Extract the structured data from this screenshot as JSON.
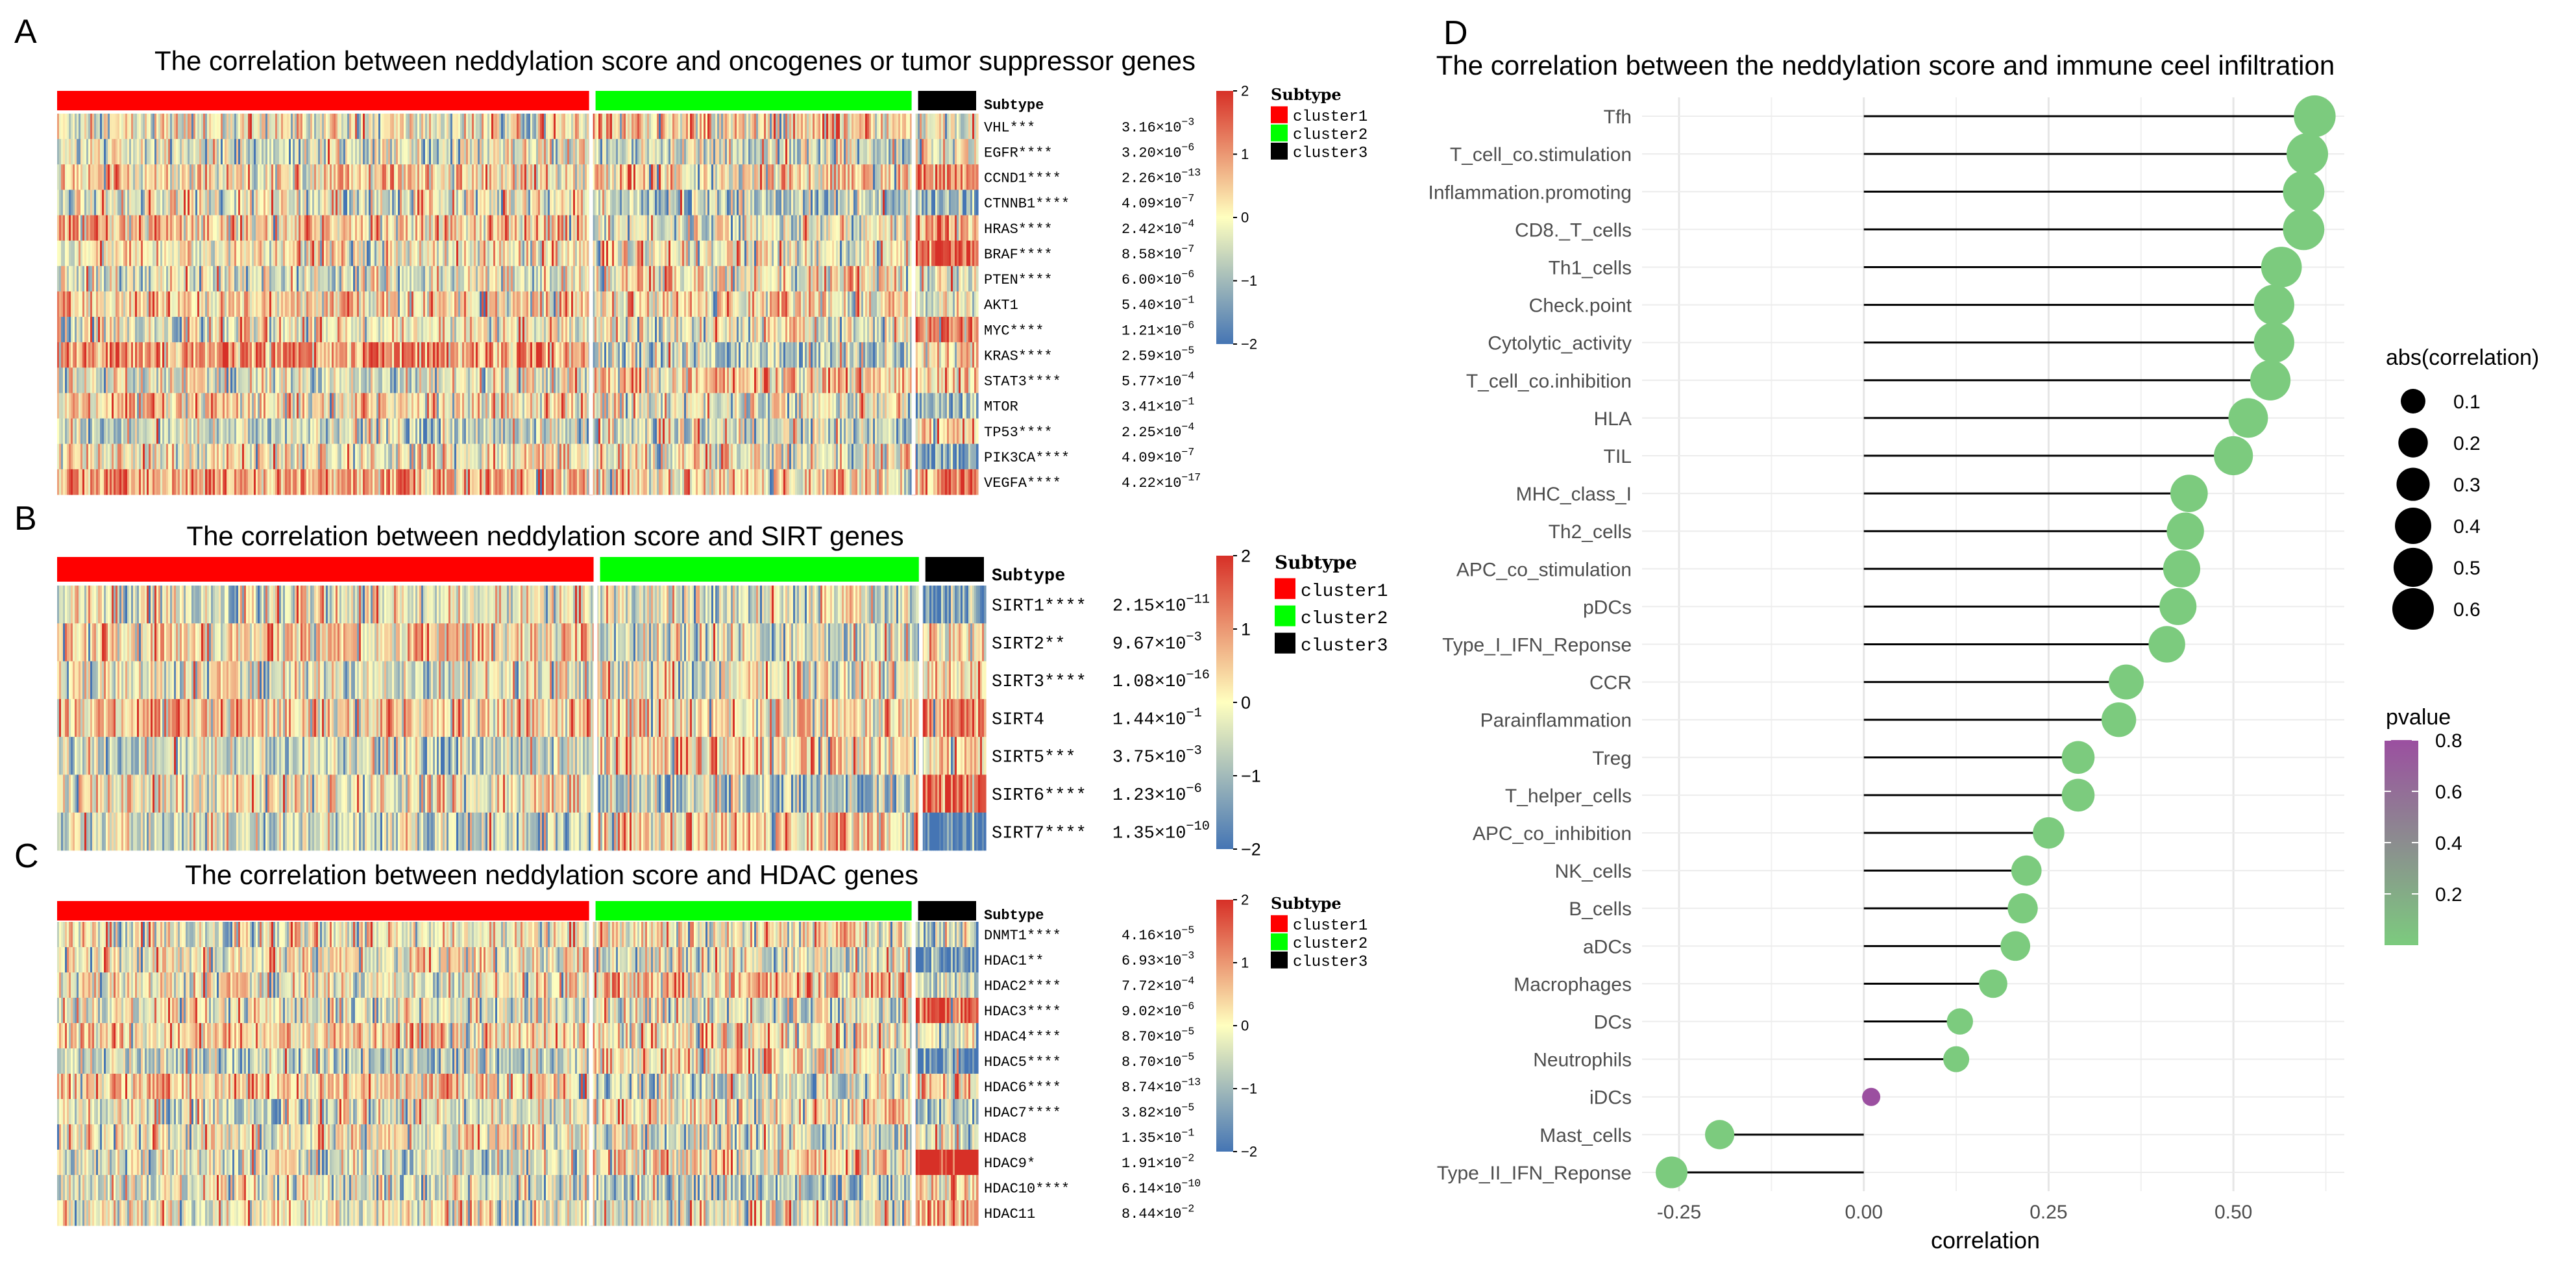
{
  "panels": {
    "A": {
      "letter": "A",
      "title": "The correlation between neddylation score and oncogenes or tumor suppressor genes",
      "annotation_label": "Subtype",
      "legend": {
        "title": "Subtype",
        "entries": [
          {
            "label": "cluster1",
            "color": "#ff0000"
          },
          {
            "label": "cluster2",
            "color": "#00ff00"
          },
          {
            "label": "cluster3",
            "color": "#000000"
          }
        ]
      },
      "colorbar_ticks": [
        "2",
        "1",
        "0",
        "−1",
        "−2"
      ],
      "genes": [
        {
          "label": "VHL***",
          "p_mant": "3.16×10",
          "p_exp": "−3"
        },
        {
          "label": "EGFR****",
          "p_mant": "3.20×10",
          "p_exp": "−6"
        },
        {
          "label": "CCND1****",
          "p_mant": "2.26×10",
          "p_exp": "−13"
        },
        {
          "label": "CTNNB1****",
          "p_mant": "4.09×10",
          "p_exp": "−7"
        },
        {
          "label": "HRAS****",
          "p_mant": "2.42×10",
          "p_exp": "−4"
        },
        {
          "label": "BRAF****",
          "p_mant": "8.58×10",
          "p_exp": "−7"
        },
        {
          "label": "PTEN****",
          "p_mant": "6.00×10",
          "p_exp": "−6"
        },
        {
          "label": "AKT1",
          "p_mant": "5.40×10",
          "p_exp": "−1"
        },
        {
          "label": "MYC****",
          "p_mant": "1.21×10",
          "p_exp": "−6"
        },
        {
          "label": "KRAS****",
          "p_mant": "2.59×10",
          "p_exp": "−5"
        },
        {
          "label": "STAT3****",
          "p_mant": "5.77×10",
          "p_exp": "−4"
        },
        {
          "label": "MTOR",
          "p_mant": "3.41×10",
          "p_exp": "−1"
        },
        {
          "label": "TP53****",
          "p_mant": "2.25×10",
          "p_exp": "−4"
        },
        {
          "label": "PIK3CA****",
          "p_mant": "4.09×10",
          "p_exp": "−7"
        },
        {
          "label": "VEGFA****",
          "p_mant": "4.22×10",
          "p_exp": "−17"
        }
      ]
    },
    "B": {
      "letter": "B",
      "title": "The correlation between neddylation score and SIRT genes",
      "annotation_label": "Subtype",
      "legend": {
        "title": "Subtype",
        "entries": [
          {
            "label": "cluster1",
            "color": "#ff0000"
          },
          {
            "label": "cluster2",
            "color": "#00ff00"
          },
          {
            "label": "cluster3",
            "color": "#000000"
          }
        ]
      },
      "colorbar_ticks": [
        "2",
        "1",
        "0",
        "−1",
        "−2"
      ],
      "genes": [
        {
          "label": "SIRT1****",
          "p_mant": "2.15×10",
          "p_exp": "−11"
        },
        {
          "label": "SIRT2**",
          "p_mant": "9.67×10",
          "p_exp": "−3"
        },
        {
          "label": "SIRT3****",
          "p_mant": "1.08×10",
          "p_exp": "−16"
        },
        {
          "label": "SIRT4",
          "p_mant": "1.44×10",
          "p_exp": "−1"
        },
        {
          "label": "SIRT5***",
          "p_mant": "3.75×10",
          "p_exp": "−3"
        },
        {
          "label": "SIRT6****",
          "p_mant": "1.23×10",
          "p_exp": "−6"
        },
        {
          "label": "SIRT7****",
          "p_mant": "1.35×10",
          "p_exp": "−10"
        }
      ]
    },
    "C": {
      "letter": "C",
      "title": "The correlation between neddylation score and HDAC genes",
      "annotation_label": "Subtype",
      "legend": {
        "title": "Subtype",
        "entries": [
          {
            "label": "cluster1",
            "color": "#ff0000"
          },
          {
            "label": "cluster2",
            "color": "#00ff00"
          },
          {
            "label": "cluster3",
            "color": "#000000"
          }
        ]
      },
      "colorbar_ticks": [
        "2",
        "1",
        "0",
        "−1",
        "−2"
      ],
      "genes": [
        {
          "label": "DNMT1****",
          "p_mant": "4.16×10",
          "p_exp": "−5"
        },
        {
          "label": "HDAC1**",
          "p_mant": "6.93×10",
          "p_exp": "−3"
        },
        {
          "label": "HDAC2****",
          "p_mant": "7.72×10",
          "p_exp": "−4"
        },
        {
          "label": "HDAC3****",
          "p_mant": "9.02×10",
          "p_exp": "−6"
        },
        {
          "label": "HDAC4****",
          "p_mant": "8.70×10",
          "p_exp": "−5"
        },
        {
          "label": "HDAC5****",
          "p_mant": "8.70×10",
          "p_exp": "−5"
        },
        {
          "label": "HDAC6****",
          "p_mant": "8.74×10",
          "p_exp": "−13"
        },
        {
          "label": "HDAC7****",
          "p_mant": "3.82×10",
          "p_exp": "−5"
        },
        {
          "label": "HDAC8",
          "p_mant": "1.35×10",
          "p_exp": "−1"
        },
        {
          "label": "HDAC9*",
          "p_mant": "1.91×10",
          "p_exp": "−2"
        },
        {
          "label": "HDAC10****",
          "p_mant": "6.14×10",
          "p_exp": "−10"
        },
        {
          "label": "HDAC11",
          "p_mant": "8.44×10",
          "p_exp": "−2"
        }
      ]
    },
    "D": {
      "letter": "D",
      "title": "The correlation between the neddylation score and immune ceel infiltration"
    }
  },
  "colors": {
    "heat_high": "#d73027",
    "heat_mid": "#ffffbf",
    "heat_low": "#4575b4",
    "dot_low_p": "#7ccb7e",
    "dot_high_p": "#9b4fa0"
  },
  "chart_data": [
    {
      "type": "heatmap",
      "panel": "A",
      "title": "The correlation between neddylation score and oncogenes or tumor suppressor genes",
      "rows": [
        "VHL",
        "EGFR",
        "CCND1",
        "CTNNB1",
        "HRAS",
        "BRAF",
        "PTEN",
        "AKT1",
        "MYC",
        "KRAS",
        "STAT3",
        "MTOR",
        "TP53",
        "PIK3CA",
        "VEGFA"
      ],
      "column_groups": [
        {
          "name": "cluster1",
          "fraction": 0.58
        },
        {
          "name": "cluster2",
          "fraction": 0.35
        },
        {
          "name": "cluster3",
          "fraction": 0.07
        }
      ],
      "color_range": [
        -2,
        2
      ]
    },
    {
      "type": "heatmap",
      "panel": "B",
      "title": "The correlation between neddylation score and SIRT genes",
      "rows": [
        "SIRT1",
        "SIRT2",
        "SIRT3",
        "SIRT4",
        "SIRT5",
        "SIRT6",
        "SIRT7"
      ],
      "column_groups": [
        {
          "name": "cluster1",
          "fraction": 0.58
        },
        {
          "name": "cluster2",
          "fraction": 0.35
        },
        {
          "name": "cluster3",
          "fraction": 0.07
        }
      ],
      "color_range": [
        -2,
        2
      ]
    },
    {
      "type": "heatmap",
      "panel": "C",
      "title": "The correlation between neddylation score and HDAC genes",
      "rows": [
        "DNMT1",
        "HDAC1",
        "HDAC2",
        "HDAC3",
        "HDAC4",
        "HDAC5",
        "HDAC6",
        "HDAC7",
        "HDAC8",
        "HDAC9",
        "HDAC10",
        "HDAC11"
      ],
      "column_groups": [
        {
          "name": "cluster1",
          "fraction": 0.58
        },
        {
          "name": "cluster2",
          "fraction": 0.35
        },
        {
          "name": "cluster3",
          "fraction": 0.07
        }
      ],
      "color_range": [
        -2,
        2
      ]
    },
    {
      "type": "scatter",
      "subtype": "lollipop",
      "panel": "D",
      "title": "The correlation between the neddylation score and immune ceel infiltration",
      "xlabel": "correlation",
      "ylabel": "",
      "xlim": [
        -0.3,
        0.65
      ],
      "x_ticks": [
        -0.25,
        0.0,
        0.25,
        0.5
      ],
      "x_tick_labels": [
        "-0.25",
        "0.00",
        "0.25",
        "0.50"
      ],
      "categories": [
        "Tfh",
        "T_cell_co.stimulation",
        "Inflammation.promoting",
        "CD8._T_cells",
        "Th1_cells",
        "Check.point",
        "Cytolytic_activity",
        "T_cell_co.inhibition",
        "HLA",
        "TIL",
        "MHC_class_I",
        "Th2_cells",
        "APC_co_stimulation",
        "pDCs",
        "Type_I_IFN_Reponse",
        "CCR",
        "Parainflammation",
        "Treg",
        "T_helper_cells",
        "APC_co_inhibition",
        "NK_cells",
        "B_cells",
        "aDCs",
        "Macrophages",
        "DCs",
        "Neutrophils",
        "iDCs",
        "Mast_cells",
        "Type_II_IFN_Reponse"
      ],
      "correlation": [
        0.61,
        0.6,
        0.595,
        0.595,
        0.565,
        0.555,
        0.555,
        0.55,
        0.52,
        0.5,
        0.44,
        0.435,
        0.43,
        0.425,
        0.41,
        0.355,
        0.345,
        0.29,
        0.29,
        0.25,
        0.22,
        0.215,
        0.205,
        0.175,
        0.13,
        0.125,
        0.01,
        -0.195,
        -0.26
      ],
      "pvalue": [
        0.0,
        0.0,
        0.0,
        0.0,
        0.0,
        0.0,
        0.0,
        0.0,
        0.0,
        0.0,
        0.0,
        0.0,
        0.0,
        0.0,
        0.0,
        0.0,
        0.0,
        0.0,
        0.0,
        0.0,
        0.0,
        0.0,
        0.0,
        0.0,
        0.0,
        0.0,
        0.8,
        0.0,
        0.0
      ],
      "size_legend": {
        "title": "abs(correlation)",
        "values": [
          0.1,
          0.2,
          0.3,
          0.4,
          0.5,
          0.6
        ],
        "labels": [
          "0.1",
          "0.2",
          "0.3",
          "0.4",
          "0.5",
          "0.6"
        ]
      },
      "color_legend": {
        "title": "pvalue",
        "range": [
          0.0,
          0.8
        ],
        "ticks": [
          0.8,
          0.6,
          0.4,
          0.2
        ],
        "labels": [
          "0.8",
          "0.6",
          "0.4",
          "0.2"
        ]
      }
    }
  ]
}
